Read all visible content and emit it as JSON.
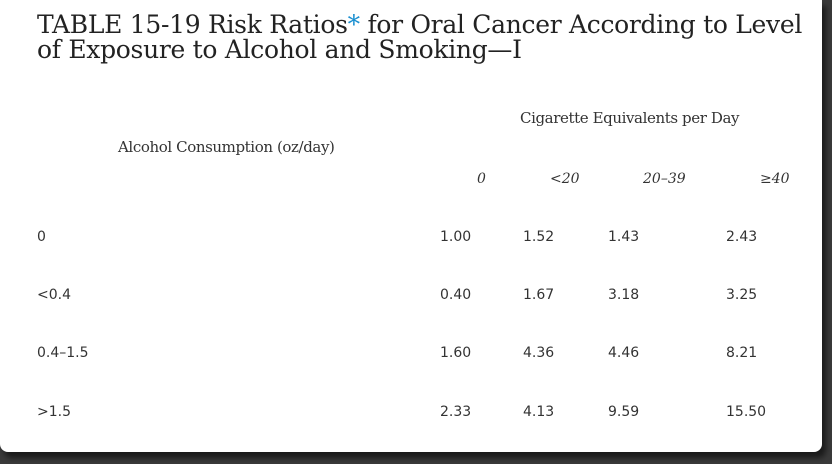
{
  "title": {
    "prefix": "TABLE 15-19 Risk Ratios",
    "star": "*",
    "suffix": " for Oral Cancer According to Level of Exposure to Alcohol and Smoking—I"
  },
  "table": {
    "group_header": "Cigarette Equivalents per Day",
    "row_header": "Alcohol Consumption (oz/day)",
    "columns": [
      "0",
      "<20",
      "20–39",
      "≥40"
    ],
    "rows": [
      {
        "label": "0",
        "values": [
          "1.00",
          "1.52",
          "1.43",
          "2.43"
        ]
      },
      {
        "label": "<0.4",
        "values": [
          "0.40",
          "1.67",
          "3.18",
          "3.25"
        ]
      },
      {
        "label": "0.4–1.5",
        "values": [
          "1.60",
          "4.36",
          "4.46",
          "8.21"
        ]
      },
      {
        "label": ">1.5",
        "values": [
          "2.33",
          "4.13",
          "9.59",
          "15.50"
        ]
      }
    ]
  }
}
